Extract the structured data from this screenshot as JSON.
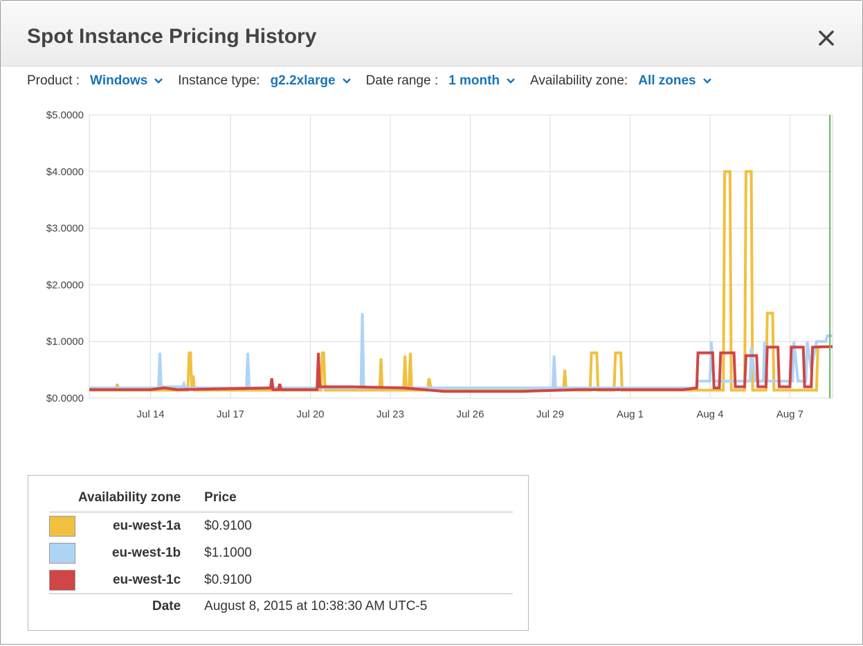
{
  "dialog": {
    "title": "Spot Instance Pricing History",
    "close_icon": "close-icon"
  },
  "filters": {
    "product": {
      "label": "Product :",
      "value": "Windows"
    },
    "instance_type": {
      "label": "Instance type:",
      "value": "g2.2xlarge"
    },
    "date_range": {
      "label": "Date range :",
      "value": "1 month"
    },
    "availability_zone": {
      "label": "Availability zone:",
      "value": "All zones"
    }
  },
  "chart_data": {
    "type": "line",
    "y_ticks": [
      "$5.0000",
      "$4.0000",
      "$3.0000",
      "$2.0000",
      "$1.0000",
      "$0.0000"
    ],
    "ylim": [
      0,
      5
    ],
    "x_ticks": [
      "Jul 14",
      "Jul 17",
      "Jul 20",
      "Jul 23",
      "Jul 26",
      "Jul 29",
      "Aug 1",
      "Aug 4",
      "Aug 7"
    ],
    "x_tick_days": [
      14,
      17,
      20,
      23,
      26,
      29,
      32,
      35,
      38
    ],
    "xlim": [
      11.7,
      39.6
    ],
    "grid": true,
    "cursor_day": 39.5,
    "series": [
      {
        "name": "eu-west-1a",
        "color": "#f0c040",
        "points": [
          [
            11.7,
            0.14
          ],
          [
            12.7,
            0.14
          ],
          [
            12.75,
            0.25
          ],
          [
            12.8,
            0.14
          ],
          [
            15.4,
            0.14
          ],
          [
            15.45,
            0.8
          ],
          [
            15.5,
            0.8
          ],
          [
            15.55,
            0.14
          ],
          [
            15.6,
            0.4
          ],
          [
            15.65,
            0.14
          ],
          [
            20.4,
            0.14
          ],
          [
            20.45,
            0.8
          ],
          [
            20.5,
            0.8
          ],
          [
            20.55,
            0.14
          ],
          [
            22.6,
            0.14
          ],
          [
            22.65,
            0.7
          ],
          [
            22.7,
            0.14
          ],
          [
            23.5,
            0.14
          ],
          [
            23.55,
            0.75
          ],
          [
            23.6,
            0.14
          ],
          [
            23.7,
            0.14
          ],
          [
            23.75,
            0.8
          ],
          [
            23.8,
            0.14
          ],
          [
            24.4,
            0.14
          ],
          [
            24.45,
            0.35
          ],
          [
            24.55,
            0.14
          ],
          [
            29.5,
            0.14
          ],
          [
            29.55,
            0.5
          ],
          [
            29.6,
            0.14
          ],
          [
            30.5,
            0.14
          ],
          [
            30.55,
            0.8
          ],
          [
            30.75,
            0.8
          ],
          [
            30.8,
            0.14
          ],
          [
            31.4,
            0.14
          ],
          [
            31.45,
            0.8
          ],
          [
            31.65,
            0.8
          ],
          [
            31.7,
            0.14
          ],
          [
            35.5,
            0.14
          ],
          [
            35.55,
            4.0
          ],
          [
            35.75,
            4.0
          ],
          [
            35.8,
            0.14
          ],
          [
            36.3,
            0.14
          ],
          [
            36.35,
            4.0
          ],
          [
            36.55,
            4.0
          ],
          [
            36.6,
            0.14
          ],
          [
            37.1,
            0.14
          ],
          [
            37.15,
            1.5
          ],
          [
            37.35,
            1.5
          ],
          [
            37.4,
            0.14
          ],
          [
            39.0,
            0.14
          ],
          [
            39.05,
            0.91
          ],
          [
            39.6,
            0.91
          ]
        ]
      },
      {
        "name": "eu-west-1b",
        "color": "#aed4f5",
        "points": [
          [
            11.7,
            0.18
          ],
          [
            14.3,
            0.18
          ],
          [
            14.35,
            0.8
          ],
          [
            14.4,
            0.2
          ],
          [
            15.2,
            0.2
          ],
          [
            15.25,
            0.25
          ],
          [
            15.3,
            0.18
          ],
          [
            17.6,
            0.18
          ],
          [
            17.65,
            0.8
          ],
          [
            17.7,
            0.18
          ],
          [
            21.9,
            0.18
          ],
          [
            21.95,
            1.5
          ],
          [
            22.0,
            0.18
          ],
          [
            29.1,
            0.18
          ],
          [
            29.15,
            0.75
          ],
          [
            29.2,
            0.18
          ],
          [
            34.5,
            0.18
          ],
          [
            34.55,
            0.3
          ],
          [
            35.0,
            0.3
          ],
          [
            35.05,
            1.0
          ],
          [
            35.15,
            0.3
          ],
          [
            36.5,
            0.3
          ],
          [
            36.55,
            0.9
          ],
          [
            36.7,
            0.3
          ],
          [
            37.0,
            0.3
          ],
          [
            37.05,
            1.0
          ],
          [
            37.15,
            0.3
          ],
          [
            38.1,
            0.3
          ],
          [
            38.15,
            1.0
          ],
          [
            38.3,
            0.3
          ],
          [
            38.6,
            0.3
          ],
          [
            38.65,
            1.0
          ],
          [
            38.8,
            0.5
          ],
          [
            39.0,
            1.0
          ],
          [
            39.35,
            1.0
          ],
          [
            39.4,
            1.1
          ],
          [
            39.6,
            1.1
          ]
        ]
      },
      {
        "name": "eu-west-1c",
        "color": "#d04545",
        "points": [
          [
            11.7,
            0.15
          ],
          [
            14.0,
            0.15
          ],
          [
            14.5,
            0.18
          ],
          [
            15.0,
            0.15
          ],
          [
            18.5,
            0.18
          ],
          [
            18.55,
            0.35
          ],
          [
            18.6,
            0.15
          ],
          [
            18.8,
            0.15
          ],
          [
            18.85,
            0.25
          ],
          [
            18.9,
            0.15
          ],
          [
            20.25,
            0.15
          ],
          [
            20.3,
            0.8
          ],
          [
            20.35,
            0.2
          ],
          [
            21.5,
            0.2
          ],
          [
            23.5,
            0.18
          ],
          [
            25.0,
            0.12
          ],
          [
            28.0,
            0.12
          ],
          [
            30.0,
            0.15
          ],
          [
            34.0,
            0.15
          ],
          [
            34.5,
            0.18
          ],
          [
            34.55,
            0.8
          ],
          [
            35.1,
            0.8
          ],
          [
            35.15,
            0.18
          ],
          [
            35.35,
            0.18
          ],
          [
            35.4,
            0.8
          ],
          [
            35.9,
            0.8
          ],
          [
            35.95,
            0.2
          ],
          [
            36.3,
            0.2
          ],
          [
            36.35,
            0.75
          ],
          [
            36.75,
            0.75
          ],
          [
            36.8,
            0.2
          ],
          [
            37.1,
            0.2
          ],
          [
            37.15,
            0.9
          ],
          [
            37.55,
            0.9
          ],
          [
            37.6,
            0.2
          ],
          [
            38.0,
            0.2
          ],
          [
            38.05,
            0.9
          ],
          [
            38.5,
            0.9
          ],
          [
            38.55,
            0.2
          ],
          [
            38.8,
            0.2
          ],
          [
            38.85,
            0.9
          ],
          [
            39.6,
            0.91
          ]
        ]
      }
    ]
  },
  "legend": {
    "header_zone": "Availability zone",
    "header_price": "Price",
    "rows": [
      {
        "zone": "eu-west-1a",
        "price": "$0.9100",
        "color": "#f0c040"
      },
      {
        "zone": "eu-west-1b",
        "price": "$1.1000",
        "color": "#aed4f5"
      },
      {
        "zone": "eu-west-1c",
        "price": "$0.9100",
        "color": "#d04545"
      }
    ],
    "date_label": "Date",
    "date_value": "August 8, 2015 at 10:38:30 AM UTC-5"
  }
}
